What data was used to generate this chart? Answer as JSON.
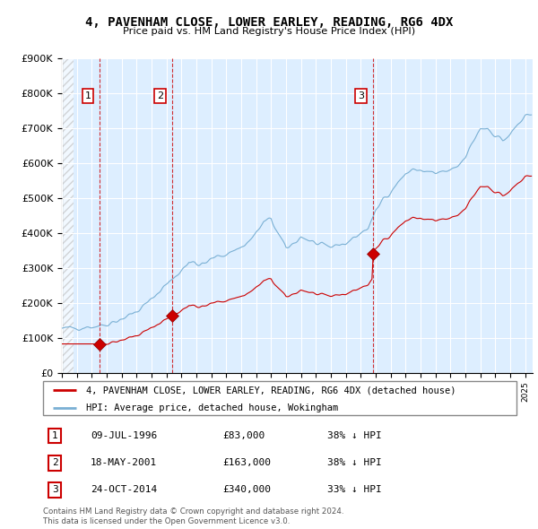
{
  "title": "4, PAVENHAM CLOSE, LOWER EARLEY, READING, RG6 4DX",
  "subtitle": "Price paid vs. HM Land Registry's House Price Index (HPI)",
  "legend_line1": "4, PAVENHAM CLOSE, LOWER EARLEY, READING, RG6 4DX (detached house)",
  "legend_line2": "HPI: Average price, detached house, Wokingham",
  "footer1": "Contains HM Land Registry data © Crown copyright and database right 2024.",
  "footer2": "This data is licensed under the Open Government Licence v3.0.",
  "sales": [
    {
      "num": 1,
      "date": "09-JUL-1996",
      "price": 83000,
      "year_f": 1996.53,
      "pct": "38% ↓ HPI"
    },
    {
      "num": 2,
      "date": "18-MAY-2001",
      "price": 163000,
      "year_f": 2001.37,
      "pct": "38% ↓ HPI"
    },
    {
      "num": 3,
      "date": "24-OCT-2014",
      "price": 340000,
      "year_f": 2014.81,
      "pct": "33% ↓ HPI"
    }
  ],
  "hpi_color": "#7ab0d4",
  "hpi_fill_color": "#ddeeff",
  "price_color": "#cc0000",
  "vline_color": "#cc0000",
  "marker_color": "#cc0000",
  "ylim": [
    0,
    900000
  ],
  "xlim_start": 1994.0,
  "xlim_end": 2025.5,
  "ytick_labels": [
    "£0",
    "£100K",
    "£200K",
    "£300K",
    "£400K",
    "£500K",
    "£600K",
    "£700K",
    "£800K",
    "£900K"
  ],
  "ytick_vals": [
    0,
    100000,
    200000,
    300000,
    400000,
    500000,
    600000,
    700000,
    800000,
    900000
  ],
  "hatch_color": "#cccccc",
  "bg_color": "#ddeeff"
}
